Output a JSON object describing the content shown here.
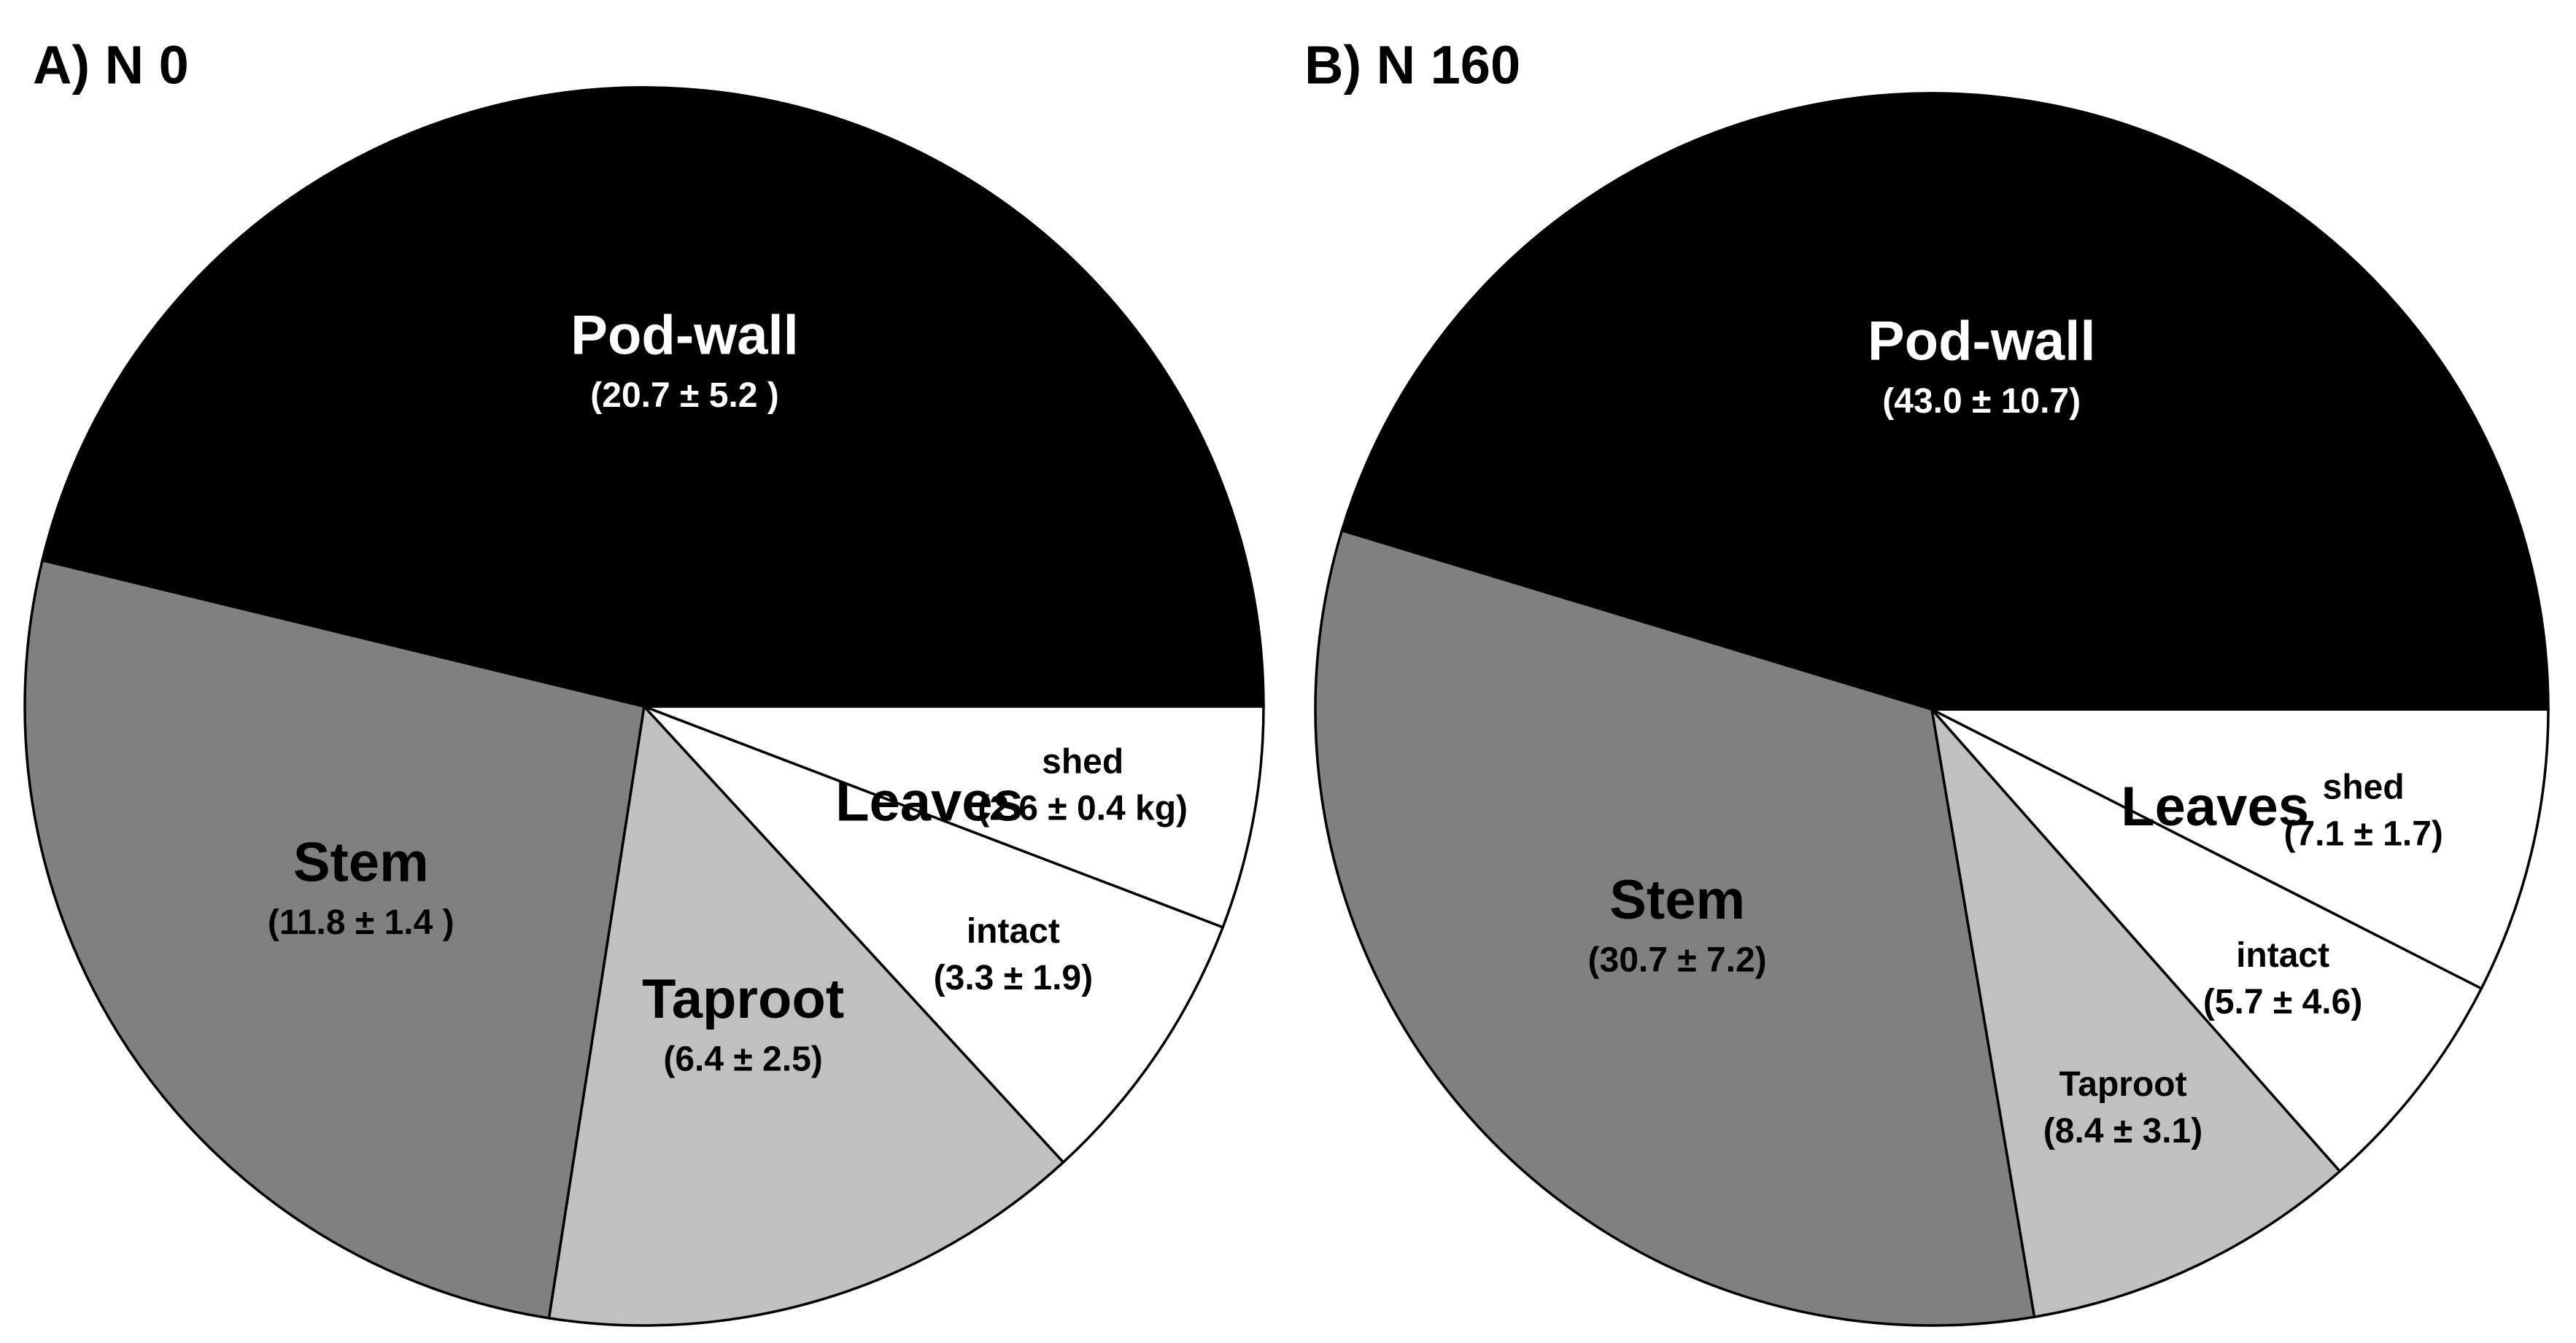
{
  "chart_data": [
    {
      "type": "pie",
      "title": "A) N 0",
      "categories": [
        "Pod-wall",
        "Stem",
        "Taproot",
        "intact",
        "shed"
      ],
      "values": [
        20.7,
        11.8,
        6.4,
        3.3,
        2.6
      ],
      "value_labels": [
        "(20.7 ± 5.2 )",
        "(11.8 ± 1.4 )",
        "(6.4 ± 2.5)",
        "(3.3 ± 1.9)",
        "(2.6 ± 0.4 kg)"
      ],
      "colors": [
        "#000000",
        "#808080",
        "#c0c0c0",
        "#ffffff",
        "#ffffff"
      ],
      "annotations": [
        "Leaves"
      ]
    },
    {
      "type": "pie",
      "title": "B) N 160",
      "categories": [
        "Pod-wall",
        "Stem",
        "Taproot",
        "intact",
        "shed"
      ],
      "values": [
        43.0,
        30.7,
        8.4,
        5.7,
        7.1
      ],
      "value_labels": [
        "(43.0 ± 10.7)",
        "(30.7 ± 7.2)",
        "(8.4 ± 3.1)",
        "(5.7 ± 4.6)",
        "(7.1 ± 1.7)"
      ],
      "colors": [
        "#000000",
        "#808080",
        "#c0c0c0",
        "#ffffff",
        "#ffffff"
      ],
      "annotations": [
        "Leaves"
      ]
    }
  ]
}
